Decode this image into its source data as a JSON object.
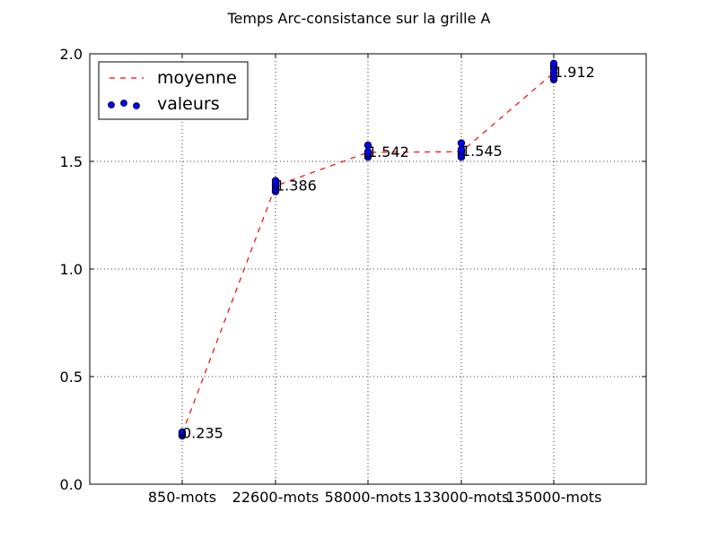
{
  "chart_data": {
    "type": "scatter",
    "title": "Temps Arc-consistance sur la grille A",
    "xlabel": "",
    "ylabel": "",
    "categories": [
      "850-mots",
      "22600-mots",
      "58000-mots",
      "133000-mots",
      "135000-mots"
    ],
    "ylim": [
      0.0,
      2.0
    ],
    "y_ticks": [
      "0.0",
      "0.5",
      "1.0",
      "1.5",
      "2.0"
    ],
    "grid": true,
    "legend_position": "top-left",
    "series": [
      {
        "name": "moyenne",
        "kind": "line",
        "style": "dashed",
        "color": "#ff0000",
        "values": [
          0.235,
          1.386,
          1.542,
          1.545,
          1.912
        ]
      },
      {
        "name": "valeurs",
        "kind": "scatter",
        "color": "#0000ff",
        "points": [
          [
            0.225,
            0.232,
            0.238,
            0.242
          ],
          [
            1.36,
            1.37,
            1.385,
            1.395,
            1.41
          ],
          [
            1.52,
            1.53,
            1.535,
            1.545,
            1.575
          ],
          [
            1.52,
            1.53,
            1.545,
            1.555,
            1.585
          ],
          [
            1.88,
            1.89,
            1.91,
            1.93,
            1.945,
            1.955
          ]
        ]
      }
    ],
    "annotations": [
      "0.235",
      "1.386",
      "1.542",
      "1.545",
      "1.912"
    ]
  }
}
